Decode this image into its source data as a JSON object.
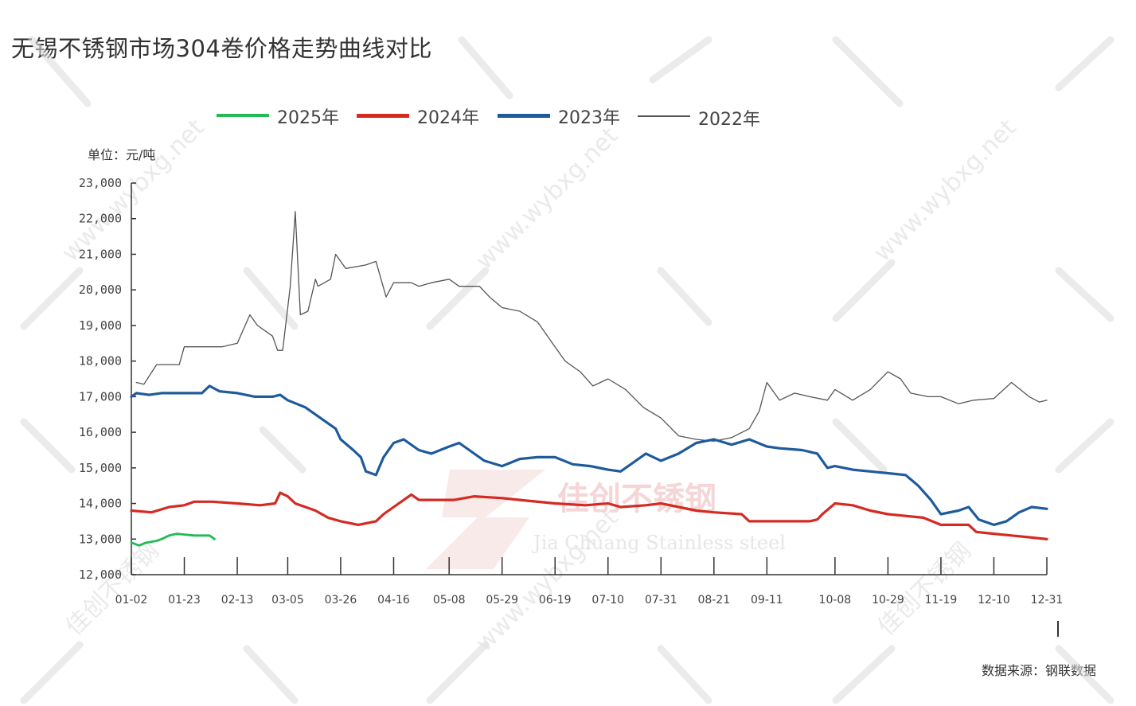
{
  "title": "无锡不锈钢市场304卷价格走势曲线对比",
  "unit": "单位：元/吨",
  "source": "数据来源：钢联数据",
  "watermark": {
    "site": "www.wybxg.net",
    "brand_cn": "佳创不锈钢",
    "brand_en": "Jia Chuang Stainless steel"
  },
  "colors": {
    "2025": "#22bb55",
    "2024": "#d42a22",
    "2023": "#1f5b9c",
    "2022": "#555555"
  },
  "chart_data": {
    "type": "line",
    "title": "无锡不锈钢市场304卷价格走势曲线对比",
    "xlabel": "",
    "ylabel": "单位：元/吨",
    "ylim": [
      12000,
      23000
    ],
    "yticks": [
      12000,
      13000,
      14000,
      15000,
      16000,
      17000,
      18000,
      19000,
      20000,
      21000,
      22000,
      23000
    ],
    "ytick_labels": [
      "12,000",
      "13,000",
      "14,000",
      "15,000",
      "16,000",
      "17,000",
      "18,000",
      "19,000",
      "20,000",
      "21,000",
      "22,000",
      "23,000"
    ],
    "xlim": [
      "01-02",
      "12-31"
    ],
    "xtick_labels": [
      "01-02",
      "01-23",
      "02-13",
      "03-05",
      "03-26",
      "04-16",
      "05-08",
      "05-29",
      "06-19",
      "07-10",
      "07-31",
      "08-21",
      "09-11",
      "10-08",
      "10-29",
      "11-19",
      "12-10",
      "12-31"
    ],
    "legend_position": "top",
    "grid": false,
    "series": [
      {
        "name": "2025年",
        "color": "#22bb55",
        "points": [
          [
            "01-02",
            12900
          ],
          [
            "01-05",
            12820
          ],
          [
            "01-08",
            12900
          ],
          [
            "01-12",
            12950
          ],
          [
            "01-14",
            13000
          ],
          [
            "01-17",
            13100
          ],
          [
            "01-20",
            13150
          ],
          [
            "01-27",
            13100
          ],
          [
            "02-02",
            13100
          ],
          [
            "02-04",
            13000
          ]
        ]
      },
      {
        "name": "2024年",
        "color": "#d42a22",
        "points": [
          [
            "01-02",
            13800
          ],
          [
            "01-10",
            13750
          ],
          [
            "01-17",
            13900
          ],
          [
            "01-23",
            13950
          ],
          [
            "01-27",
            14050
          ],
          [
            "02-03",
            14050
          ],
          [
            "02-13",
            14000
          ],
          [
            "02-22",
            13950
          ],
          [
            "02-28",
            14000
          ],
          [
            "03-02",
            14300
          ],
          [
            "03-05",
            14200
          ],
          [
            "03-08",
            14000
          ],
          [
            "03-16",
            13800
          ],
          [
            "03-21",
            13600
          ],
          [
            "03-26",
            13500
          ],
          [
            "04-02",
            13400
          ],
          [
            "04-09",
            13500
          ],
          [
            "04-12",
            13700
          ],
          [
            "04-16",
            13900
          ],
          [
            "04-23",
            14250
          ],
          [
            "04-26",
            14100
          ],
          [
            "05-10",
            14100
          ],
          [
            "05-18",
            14200
          ],
          [
            "05-29",
            14150
          ],
          [
            "06-05",
            14100
          ],
          [
            "06-19",
            14000
          ],
          [
            "07-01",
            13950
          ],
          [
            "07-10",
            14000
          ],
          [
            "07-15",
            13900
          ],
          [
            "07-25",
            13950
          ],
          [
            "07-31",
            14000
          ],
          [
            "08-07",
            13900
          ],
          [
            "08-14",
            13800
          ],
          [
            "08-21",
            13750
          ],
          [
            "09-01",
            13700
          ],
          [
            "09-04",
            13500
          ],
          [
            "09-18",
            13500
          ],
          [
            "09-28",
            13500
          ],
          [
            "10-01",
            13550
          ],
          [
            "10-03",
            13700
          ],
          [
            "10-08",
            14000
          ],
          [
            "10-15",
            13950
          ],
          [
            "10-22",
            13800
          ],
          [
            "10-29",
            13700
          ],
          [
            "11-05",
            13650
          ],
          [
            "11-12",
            13600
          ],
          [
            "11-19",
            13400
          ],
          [
            "11-30",
            13400
          ],
          [
            "12-03",
            13200
          ],
          [
            "12-10",
            13150
          ],
          [
            "12-17",
            13100
          ],
          [
            "12-24",
            13050
          ],
          [
            "12-31",
            13000
          ]
        ]
      },
      {
        "name": "2023年",
        "color": "#1f5b9c",
        "points": [
          [
            "01-02",
            17000
          ],
          [
            "01-04",
            17100
          ],
          [
            "01-09",
            17050
          ],
          [
            "01-14",
            17100
          ],
          [
            "01-23",
            17100
          ],
          [
            "01-30",
            17100
          ],
          [
            "02-02",
            17300
          ],
          [
            "02-06",
            17150
          ],
          [
            "02-13",
            17100
          ],
          [
            "02-20",
            17000
          ],
          [
            "02-27",
            17000
          ],
          [
            "03-02",
            17050
          ],
          [
            "03-05",
            16900
          ],
          [
            "03-12",
            16700
          ],
          [
            "03-18",
            16400
          ],
          [
            "03-24",
            16100
          ],
          [
            "03-26",
            15800
          ],
          [
            "03-31",
            15500
          ],
          [
            "04-03",
            15300
          ],
          [
            "04-05",
            14900
          ],
          [
            "04-09",
            14800
          ],
          [
            "04-12",
            15300
          ],
          [
            "04-16",
            15700
          ],
          [
            "04-20",
            15800
          ],
          [
            "04-26",
            15500
          ],
          [
            "05-01",
            15400
          ],
          [
            "05-08",
            15600
          ],
          [
            "05-12",
            15700
          ],
          [
            "05-16",
            15500
          ],
          [
            "05-22",
            15200
          ],
          [
            "05-29",
            15050
          ],
          [
            "06-05",
            15250
          ],
          [
            "06-12",
            15300
          ],
          [
            "06-19",
            15300
          ],
          [
            "06-26",
            15100
          ],
          [
            "07-03",
            15050
          ],
          [
            "07-10",
            14950
          ],
          [
            "07-15",
            14900
          ],
          [
            "07-21",
            15200
          ],
          [
            "07-25",
            15400
          ],
          [
            "07-31",
            15200
          ],
          [
            "08-07",
            15400
          ],
          [
            "08-14",
            15700
          ],
          [
            "08-21",
            15800
          ],
          [
            "08-28",
            15650
          ],
          [
            "09-04",
            15800
          ],
          [
            "09-11",
            15600
          ],
          [
            "09-16",
            15550
          ],
          [
            "09-25",
            15500
          ],
          [
            "10-01",
            15400
          ],
          [
            "10-05",
            15000
          ],
          [
            "10-08",
            15050
          ],
          [
            "10-15",
            14950
          ],
          [
            "10-22",
            14900
          ],
          [
            "10-29",
            14850
          ],
          [
            "11-05",
            14800
          ],
          [
            "11-10",
            14500
          ],
          [
            "11-15",
            14100
          ],
          [
            "11-19",
            13700
          ],
          [
            "11-26",
            13800
          ],
          [
            "11-30",
            13900
          ],
          [
            "12-04",
            13550
          ],
          [
            "12-10",
            13400
          ],
          [
            "12-15",
            13500
          ],
          [
            "12-20",
            13750
          ],
          [
            "12-25",
            13900
          ],
          [
            "12-31",
            13850
          ]
        ]
      },
      {
        "name": "2022年",
        "color": "#555555",
        "points": [
          [
            "01-04",
            17400
          ],
          [
            "01-07",
            17350
          ],
          [
            "01-12",
            17900
          ],
          [
            "01-21",
            17900
          ],
          [
            "01-23",
            18400
          ],
          [
            "02-07",
            18400
          ],
          [
            "02-13",
            18500
          ],
          [
            "02-18",
            19300
          ],
          [
            "02-21",
            19000
          ],
          [
            "02-27",
            18700
          ],
          [
            "03-01",
            18300
          ],
          [
            "03-03",
            18300
          ],
          [
            "03-06",
            20100
          ],
          [
            "03-08",
            22200
          ],
          [
            "03-10",
            19300
          ],
          [
            "03-13",
            19400
          ],
          [
            "03-16",
            20300
          ],
          [
            "03-17",
            20100
          ],
          [
            "03-22",
            20300
          ],
          [
            "03-24",
            21000
          ],
          [
            "03-28",
            20600
          ],
          [
            "04-05",
            20700
          ],
          [
            "04-09",
            20800
          ],
          [
            "04-13",
            19800
          ],
          [
            "04-16",
            20200
          ],
          [
            "04-23",
            20200
          ],
          [
            "04-26",
            20100
          ],
          [
            "05-01",
            20200
          ],
          [
            "05-08",
            20300
          ],
          [
            "05-12",
            20100
          ],
          [
            "05-20",
            20100
          ],
          [
            "05-24",
            19800
          ],
          [
            "05-29",
            19500
          ],
          [
            "06-05",
            19400
          ],
          [
            "06-12",
            19100
          ],
          [
            "06-19",
            18400
          ],
          [
            "06-23",
            18000
          ],
          [
            "06-29",
            17700
          ],
          [
            "07-04",
            17300
          ],
          [
            "07-10",
            17500
          ],
          [
            "07-17",
            17200
          ],
          [
            "07-24",
            16700
          ],
          [
            "07-31",
            16400
          ],
          [
            "08-07",
            15900
          ],
          [
            "08-14",
            15800
          ],
          [
            "08-21",
            15750
          ],
          [
            "08-28",
            15850
          ],
          [
            "09-04",
            16100
          ],
          [
            "09-08",
            16600
          ],
          [
            "09-11",
            17400
          ],
          [
            "09-16",
            16900
          ],
          [
            "09-22",
            17100
          ],
          [
            "09-28",
            17000
          ],
          [
            "10-05",
            16900
          ],
          [
            "10-08",
            17200
          ],
          [
            "10-15",
            16900
          ],
          [
            "10-22",
            17200
          ],
          [
            "10-29",
            17700
          ],
          [
            "11-03",
            17500
          ],
          [
            "11-07",
            17100
          ],
          [
            "11-14",
            17000
          ],
          [
            "11-19",
            17000
          ],
          [
            "11-26",
            16800
          ],
          [
            "12-02",
            16900
          ],
          [
            "12-10",
            16950
          ],
          [
            "12-17",
            17400
          ],
          [
            "12-24",
            17000
          ],
          [
            "12-28",
            16850
          ],
          [
            "12-31",
            16900
          ]
        ]
      }
    ]
  }
}
